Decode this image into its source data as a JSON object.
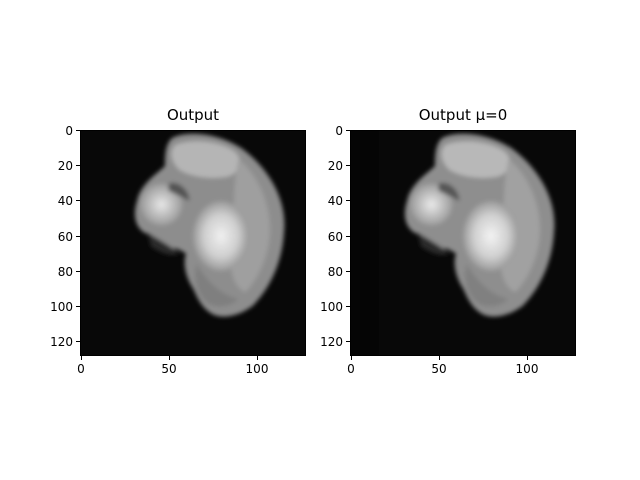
{
  "panels": [
    {
      "title": "Output",
      "xticks": [
        "0",
        "50",
        "100"
      ],
      "yticks": [
        "0",
        "20",
        "40",
        "60",
        "80",
        "100",
        "120"
      ],
      "x_tick_values": [
        0,
        50,
        100
      ],
      "y_tick_values": [
        0,
        20,
        40,
        60,
        80,
        100,
        120
      ],
      "xlim": [
        0,
        128
      ],
      "ylim": [
        128,
        0
      ]
    },
    {
      "title": "Output μ=0",
      "xticks": [
        "0",
        "50",
        "100"
      ],
      "yticks": [
        "0",
        "20",
        "40",
        "60",
        "80",
        "100",
        "120"
      ],
      "x_tick_values": [
        0,
        50,
        100
      ],
      "y_tick_values": [
        0,
        20,
        40,
        60,
        80,
        100,
        120
      ],
      "xlim": [
        0,
        128
      ],
      "ylim": [
        128,
        0
      ]
    }
  ],
  "image": {
    "description_colors": {
      "background": "#080808",
      "tissue": "#8a8a8a",
      "bright": "#e6e6e6"
    }
  }
}
